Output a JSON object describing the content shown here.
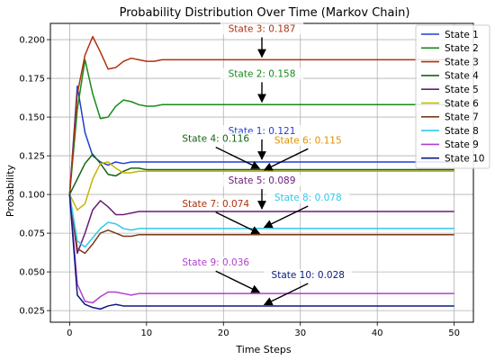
{
  "chart_data": {
    "type": "line",
    "title": "Probability Distribution Over Time (Markov Chain)",
    "xlabel": "Time Steps",
    "ylabel": "Probability",
    "xlim": [
      -2.5,
      52.5
    ],
    "ylim": [
      0.0175,
      0.2105
    ],
    "xticks": [
      0,
      10,
      20,
      30,
      40,
      50
    ],
    "yticks": [
      0.025,
      0.05,
      0.075,
      0.1,
      0.125,
      0.15,
      0.175,
      0.2
    ],
    "ytick_labels": [
      "0.025",
      "0.050",
      "0.075",
      "0.100",
      "0.125",
      "0.150",
      "0.175",
      "0.200"
    ],
    "grid": true,
    "legend_position": "upper right",
    "series": [
      {
        "name": "State 1",
        "color": "#1f3fd0",
        "values": [
          0.1,
          0.17,
          0.14,
          0.125,
          0.121,
          0.119,
          0.121,
          0.12,
          0.121,
          0.121,
          0.121,
          0.121,
          0.121,
          0.121,
          0.121,
          0.121,
          0.121,
          0.121,
          0.121,
          0.121,
          0.121,
          0.121,
          0.121,
          0.121,
          0.121,
          0.121,
          0.121,
          0.121,
          0.121,
          0.121,
          0.121,
          0.121,
          0.121,
          0.121,
          0.121,
          0.121,
          0.121,
          0.121,
          0.121,
          0.121,
          0.121,
          0.121,
          0.121,
          0.121,
          0.121,
          0.121,
          0.121,
          0.121,
          0.121,
          0.121,
          0.121
        ]
      },
      {
        "name": "State 2",
        "color": "#188a18",
        "values": [
          0.1,
          0.155,
          0.187,
          0.165,
          0.149,
          0.15,
          0.157,
          0.161,
          0.16,
          0.158,
          0.157,
          0.157,
          0.158,
          0.158,
          0.158,
          0.158,
          0.158,
          0.158,
          0.158,
          0.158,
          0.158,
          0.158,
          0.158,
          0.158,
          0.158,
          0.158,
          0.158,
          0.158,
          0.158,
          0.158,
          0.158,
          0.158,
          0.158,
          0.158,
          0.158,
          0.158,
          0.158,
          0.158,
          0.158,
          0.158,
          0.158,
          0.158,
          0.158,
          0.158,
          0.158,
          0.158,
          0.158,
          0.158,
          0.158,
          0.158,
          0.158
        ]
      },
      {
        "name": "State 3",
        "color": "#b03010",
        "values": [
          0.1,
          0.165,
          0.19,
          0.202,
          0.192,
          0.181,
          0.182,
          0.186,
          0.188,
          0.187,
          0.186,
          0.186,
          0.187,
          0.187,
          0.187,
          0.187,
          0.187,
          0.187,
          0.187,
          0.187,
          0.187,
          0.187,
          0.187,
          0.187,
          0.187,
          0.187,
          0.187,
          0.187,
          0.187,
          0.187,
          0.187,
          0.187,
          0.187,
          0.187,
          0.187,
          0.187,
          0.187,
          0.187,
          0.187,
          0.187,
          0.187,
          0.187,
          0.187,
          0.187,
          0.187,
          0.187,
          0.187,
          0.187,
          0.187,
          0.187,
          0.187
        ]
      },
      {
        "name": "State 4",
        "color": "#146414",
        "values": [
          0.1,
          0.11,
          0.12,
          0.126,
          0.12,
          0.113,
          0.112,
          0.115,
          0.117,
          0.117,
          0.116,
          0.116,
          0.116,
          0.116,
          0.116,
          0.116,
          0.116,
          0.116,
          0.116,
          0.116,
          0.116,
          0.116,
          0.116,
          0.116,
          0.116,
          0.116,
          0.116,
          0.116,
          0.116,
          0.116,
          0.116,
          0.116,
          0.116,
          0.116,
          0.116,
          0.116,
          0.116,
          0.116,
          0.116,
          0.116,
          0.116,
          0.116,
          0.116,
          0.116,
          0.116,
          0.116,
          0.116,
          0.116,
          0.116,
          0.116,
          0.116
        ]
      },
      {
        "name": "State 5",
        "color": "#6a1a7a",
        "values": [
          0.1,
          0.062,
          0.075,
          0.09,
          0.096,
          0.092,
          0.087,
          0.087,
          0.088,
          0.089,
          0.089,
          0.089,
          0.089,
          0.089,
          0.089,
          0.089,
          0.089,
          0.089,
          0.089,
          0.089,
          0.089,
          0.089,
          0.089,
          0.089,
          0.089,
          0.089,
          0.089,
          0.089,
          0.089,
          0.089,
          0.089,
          0.089,
          0.089,
          0.089,
          0.089,
          0.089,
          0.089,
          0.089,
          0.089,
          0.089,
          0.089,
          0.089,
          0.089,
          0.089,
          0.089,
          0.089,
          0.089,
          0.089,
          0.089,
          0.089,
          0.089
        ]
      },
      {
        "name": "State 6",
        "color": "#c8b400",
        "values": [
          0.1,
          0.09,
          0.094,
          0.11,
          0.12,
          0.121,
          0.117,
          0.114,
          0.114,
          0.115,
          0.115,
          0.115,
          0.115,
          0.115,
          0.115,
          0.115,
          0.115,
          0.115,
          0.115,
          0.115,
          0.115,
          0.115,
          0.115,
          0.115,
          0.115,
          0.115,
          0.115,
          0.115,
          0.115,
          0.115,
          0.115,
          0.115,
          0.115,
          0.115,
          0.115,
          0.115,
          0.115,
          0.115,
          0.115,
          0.115,
          0.115,
          0.115,
          0.115,
          0.115,
          0.115,
          0.115,
          0.115,
          0.115,
          0.115,
          0.115,
          0.115
        ]
      },
      {
        "name": "State 7",
        "color": "#7a3a1a",
        "values": [
          0.1,
          0.065,
          0.062,
          0.068,
          0.075,
          0.077,
          0.075,
          0.073,
          0.073,
          0.074,
          0.074,
          0.074,
          0.074,
          0.074,
          0.074,
          0.074,
          0.074,
          0.074,
          0.074,
          0.074,
          0.074,
          0.074,
          0.074,
          0.074,
          0.074,
          0.074,
          0.074,
          0.074,
          0.074,
          0.074,
          0.074,
          0.074,
          0.074,
          0.074,
          0.074,
          0.074,
          0.074,
          0.074,
          0.074,
          0.074,
          0.074,
          0.074,
          0.074,
          0.074,
          0.074,
          0.074,
          0.074,
          0.074,
          0.074,
          0.074,
          0.074
        ]
      },
      {
        "name": "State 8",
        "color": "#30c8e8",
        "values": [
          0.1,
          0.07,
          0.066,
          0.072,
          0.078,
          0.082,
          0.081,
          0.078,
          0.077,
          0.078,
          0.078,
          0.078,
          0.078,
          0.078,
          0.078,
          0.078,
          0.078,
          0.078,
          0.078,
          0.078,
          0.078,
          0.078,
          0.078,
          0.078,
          0.078,
          0.078,
          0.078,
          0.078,
          0.078,
          0.078,
          0.078,
          0.078,
          0.078,
          0.078,
          0.078,
          0.078,
          0.078,
          0.078,
          0.078,
          0.078,
          0.078,
          0.078,
          0.078,
          0.078,
          0.078,
          0.078,
          0.078,
          0.078,
          0.078,
          0.078,
          0.078
        ]
      },
      {
        "name": "State 9",
        "color": "#b040d0",
        "values": [
          0.1,
          0.042,
          0.031,
          0.03,
          0.034,
          0.037,
          0.037,
          0.036,
          0.035,
          0.036,
          0.036,
          0.036,
          0.036,
          0.036,
          0.036,
          0.036,
          0.036,
          0.036,
          0.036,
          0.036,
          0.036,
          0.036,
          0.036,
          0.036,
          0.036,
          0.036,
          0.036,
          0.036,
          0.036,
          0.036,
          0.036,
          0.036,
          0.036,
          0.036,
          0.036,
          0.036,
          0.036,
          0.036,
          0.036,
          0.036,
          0.036,
          0.036,
          0.036,
          0.036,
          0.036,
          0.036,
          0.036,
          0.036,
          0.036,
          0.036,
          0.036
        ]
      },
      {
        "name": "State 10",
        "color": "#0a1a80",
        "values": [
          0.1,
          0.035,
          0.029,
          0.027,
          0.026,
          0.028,
          0.029,
          0.028,
          0.028,
          0.028,
          0.028,
          0.028,
          0.028,
          0.028,
          0.028,
          0.028,
          0.028,
          0.028,
          0.028,
          0.028,
          0.028,
          0.028,
          0.028,
          0.028,
          0.028,
          0.028,
          0.028,
          0.028,
          0.028,
          0.028,
          0.028,
          0.028,
          0.028,
          0.028,
          0.028,
          0.028,
          0.028,
          0.028,
          0.028,
          0.028,
          0.028,
          0.028,
          0.028,
          0.028,
          0.028,
          0.028,
          0.028,
          0.028,
          0.028,
          0.028,
          0.028
        ]
      }
    ],
    "annotations": [
      {
        "text": "State 3: 0.187",
        "series": "State 3",
        "color": "#b03010",
        "x": 25,
        "y": 0.187,
        "text_x": 25,
        "text_y": 0.205
      },
      {
        "text": "State 2: 0.158",
        "series": "State 2",
        "color": "#188a18",
        "x": 25,
        "y": 0.158,
        "text_x": 25,
        "text_y": 0.176
      },
      {
        "text": "State 1: 0.121",
        "series": "State 1",
        "color": "#1f3fd0",
        "x": 25,
        "y": 0.121,
        "text_x": 25,
        "text_y": 0.139
      },
      {
        "text": "State 4: 0.116",
        "series": "State 4",
        "color": "#146414",
        "x": 25,
        "y": 0.116,
        "text_x": 19,
        "text_y": 0.134
      },
      {
        "text": "State 6: 0.115",
        "series": "State 6",
        "color": "#e09000",
        "x": 25,
        "y": 0.115,
        "text_x": 31,
        "text_y": 0.133
      },
      {
        "text": "State 5: 0.089",
        "series": "State 5",
        "color": "#6a1a7a",
        "x": 25,
        "y": 0.089,
        "text_x": 25,
        "text_y": 0.107
      },
      {
        "text": "State 8: 0.078",
        "series": "State 8",
        "color": "#30c8e8",
        "x": 25,
        "y": 0.078,
        "text_x": 31,
        "text_y": 0.096
      },
      {
        "text": "State 7: 0.074",
        "series": "State 7",
        "color": "#b03010",
        "x": 25,
        "y": 0.074,
        "text_x": 19,
        "text_y": 0.092
      },
      {
        "text": "State 9: 0.036",
        "series": "State 9",
        "color": "#b040d0",
        "x": 25,
        "y": 0.036,
        "text_x": 19,
        "text_y": 0.054
      },
      {
        "text": "State 10: 0.028",
        "series": "State 10",
        "color": "#0a1a80",
        "x": 25,
        "y": 0.028,
        "text_x": 31,
        "text_y": 0.046
      }
    ]
  }
}
